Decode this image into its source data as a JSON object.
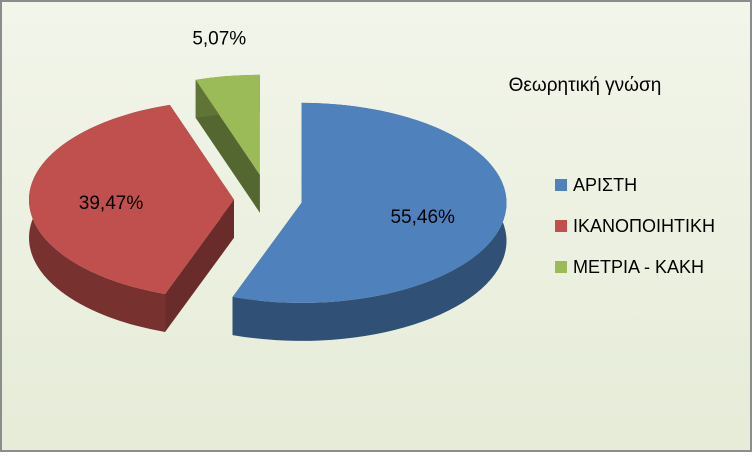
{
  "chart_data": {
    "type": "pie",
    "title": "Θεωρητική γνώση",
    "categories": [
      "ΑΡΙΣΤΗ",
      "ΙΚΑΝΟΠΟΙΗΤΙΚΗ",
      "ΜΕΤΡΙΑ - ΚΑΚΗ"
    ],
    "values": [
      55.46,
      39.47,
      5.07
    ],
    "value_labels": [
      "55,46%",
      "39,47%",
      "5,07%"
    ],
    "colors": [
      "#4f81bd",
      "#c0504d",
      "#9bbb59"
    ],
    "legend": "right"
  }
}
